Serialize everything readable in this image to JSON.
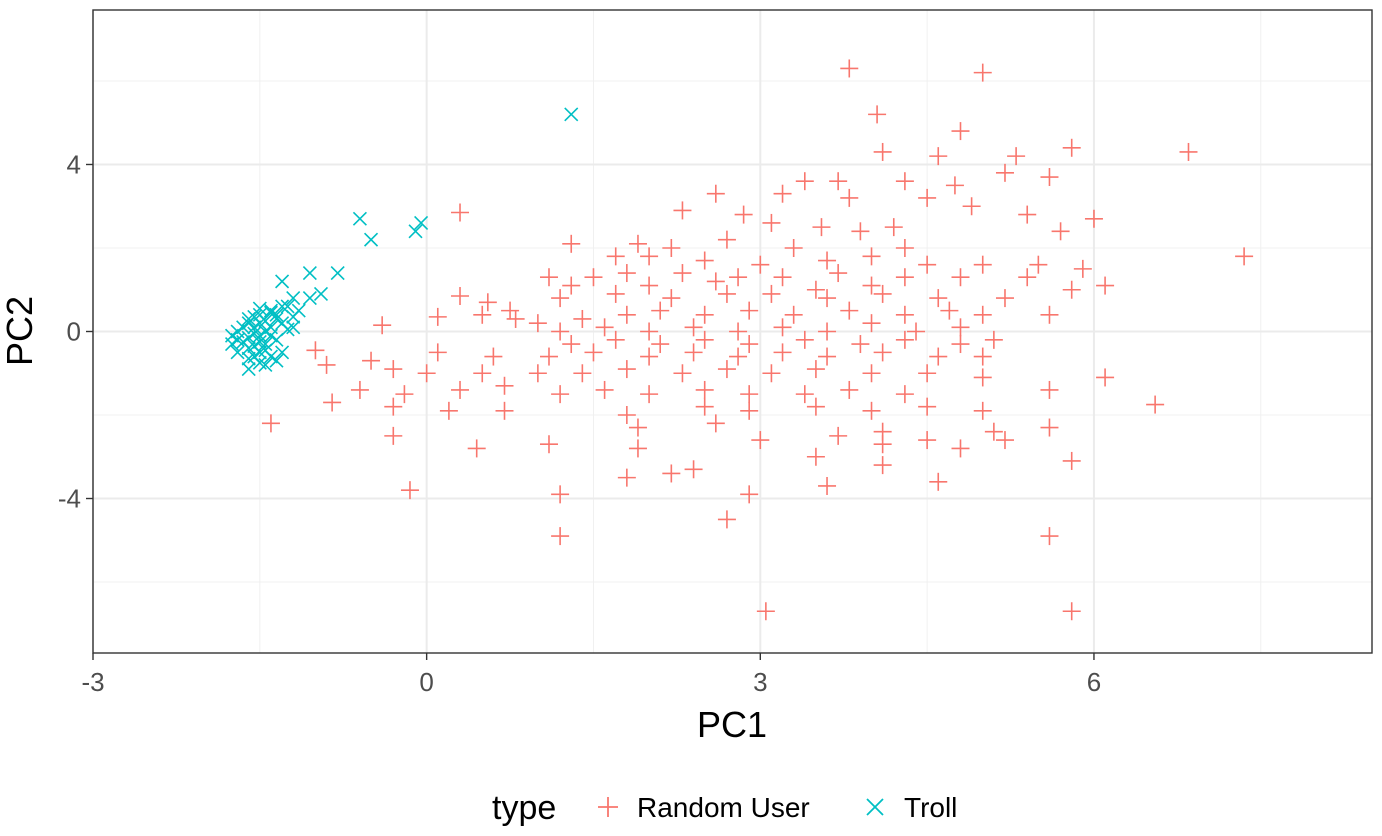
{
  "chart_data": {
    "type": "scatter",
    "xlabel": "PC1",
    "ylabel": "PC2",
    "xlim": [
      -3,
      8.5
    ],
    "ylim": [
      -7.7,
      7.7
    ],
    "x_ticks": [
      -3,
      0,
      3,
      6
    ],
    "x_tick_labels": [
      "-3",
      "0",
      "3",
      "6"
    ],
    "y_ticks": [
      -4,
      0,
      4
    ],
    "y_tick_labels": [
      "-4",
      "0",
      "4"
    ],
    "grid": true,
    "legend": {
      "title": "type",
      "position": "bottom"
    },
    "series": [
      {
        "name": "Random User",
        "color": "#F8766D",
        "marker": "plus",
        "points": [
          [
            3.8,
            6.3
          ],
          [
            5.0,
            6.2
          ],
          [
            4.05,
            5.2
          ],
          [
            4.8,
            4.8
          ],
          [
            4.1,
            4.3
          ],
          [
            4.6,
            4.2
          ],
          [
            5.3,
            4.2
          ],
          [
            5.8,
            4.4
          ],
          [
            6.85,
            4.3
          ],
          [
            5.2,
            3.8
          ],
          [
            5.6,
            3.7
          ],
          [
            3.4,
            3.6
          ],
          [
            3.7,
            3.6
          ],
          [
            4.3,
            3.6
          ],
          [
            4.75,
            3.5
          ],
          [
            2.6,
            3.3
          ],
          [
            3.2,
            3.3
          ],
          [
            3.8,
            3.2
          ],
          [
            4.5,
            3.2
          ],
          [
            4.9,
            3.0
          ],
          [
            2.3,
            2.9
          ],
          [
            2.85,
            2.8
          ],
          [
            0.3,
            2.85
          ],
          [
            5.4,
            2.8
          ],
          [
            6.0,
            2.7
          ],
          [
            3.1,
            2.6
          ],
          [
            3.55,
            2.5
          ],
          [
            3.9,
            2.4
          ],
          [
            4.2,
            2.5
          ],
          [
            5.7,
            2.4
          ],
          [
            1.3,
            2.1
          ],
          [
            1.9,
            2.1
          ],
          [
            2.2,
            2.0
          ],
          [
            2.7,
            2.2
          ],
          [
            3.3,
            2.0
          ],
          [
            4.3,
            2.0
          ],
          [
            7.35,
            1.8
          ],
          [
            1.7,
            1.8
          ],
          [
            2.0,
            1.8
          ],
          [
            2.5,
            1.7
          ],
          [
            3.0,
            1.6
          ],
          [
            3.6,
            1.7
          ],
          [
            4.0,
            1.8
          ],
          [
            4.5,
            1.6
          ],
          [
            5.0,
            1.6
          ],
          [
            5.5,
            1.6
          ],
          [
            5.9,
            1.5
          ],
          [
            1.1,
            1.3
          ],
          [
            1.5,
            1.3
          ],
          [
            1.8,
            1.4
          ],
          [
            2.3,
            1.4
          ],
          [
            2.8,
            1.3
          ],
          [
            3.2,
            1.3
          ],
          [
            3.7,
            1.4
          ],
          [
            4.3,
            1.3
          ],
          [
            4.8,
            1.3
          ],
          [
            5.4,
            1.3
          ],
          [
            6.1,
            1.1
          ],
          [
            1.3,
            1.1
          ],
          [
            2.0,
            1.1
          ],
          [
            2.6,
            1.2
          ],
          [
            3.5,
            1.0
          ],
          [
            4.0,
            1.1
          ],
          [
            0.3,
            0.85
          ],
          [
            0.55,
            0.7
          ],
          [
            0.75,
            0.5
          ],
          [
            1.2,
            0.8
          ],
          [
            1.7,
            0.9
          ],
          [
            2.2,
            0.8
          ],
          [
            2.7,
            0.9
          ],
          [
            3.1,
            0.9
          ],
          [
            3.6,
            0.8
          ],
          [
            4.1,
            0.9
          ],
          [
            4.6,
            0.8
          ],
          [
            5.2,
            0.8
          ],
          [
            5.8,
            1.0
          ],
          [
            0.1,
            0.35
          ],
          [
            0.5,
            0.4
          ],
          [
            0.8,
            0.3
          ],
          [
            1.0,
            0.2
          ],
          [
            1.4,
            0.3
          ],
          [
            1.8,
            0.4
          ],
          [
            2.1,
            0.5
          ],
          [
            2.5,
            0.4
          ],
          [
            2.9,
            0.5
          ],
          [
            3.3,
            0.4
          ],
          [
            3.8,
            0.5
          ],
          [
            4.3,
            0.4
          ],
          [
            4.7,
            0.5
          ],
          [
            5.0,
            0.4
          ],
          [
            5.6,
            0.4
          ],
          [
            -0.4,
            0.15
          ],
          [
            1.2,
            0.0
          ],
          [
            1.6,
            0.1
          ],
          [
            2.0,
            0.0
          ],
          [
            2.4,
            0.1
          ],
          [
            2.8,
            0.0
          ],
          [
            3.2,
            0.1
          ],
          [
            3.6,
            0.0
          ],
          [
            4.0,
            0.2
          ],
          [
            4.4,
            0.0
          ],
          [
            4.8,
            0.1
          ],
          [
            1.3,
            -0.3
          ],
          [
            1.7,
            -0.2
          ],
          [
            2.1,
            -0.3
          ],
          [
            2.5,
            -0.2
          ],
          [
            2.9,
            -0.3
          ],
          [
            3.4,
            -0.2
          ],
          [
            3.9,
            -0.3
          ],
          [
            4.3,
            -0.2
          ],
          [
            4.8,
            -0.3
          ],
          [
            5.1,
            -0.2
          ],
          [
            -1.0,
            -0.45
          ],
          [
            -0.5,
            -0.7
          ],
          [
            0.1,
            -0.5
          ],
          [
            0.6,
            -0.6
          ],
          [
            1.1,
            -0.6
          ],
          [
            1.5,
            -0.5
          ],
          [
            2.0,
            -0.6
          ],
          [
            2.4,
            -0.5
          ],
          [
            2.8,
            -0.6
          ],
          [
            3.2,
            -0.5
          ],
          [
            3.6,
            -0.6
          ],
          [
            4.1,
            -0.5
          ],
          [
            4.6,
            -0.6
          ],
          [
            5.0,
            -0.6
          ],
          [
            -0.9,
            -0.8
          ],
          [
            -0.3,
            -0.9
          ],
          [
            0.0,
            -1.0
          ],
          [
            0.5,
            -1.0
          ],
          [
            1.0,
            -1.0
          ],
          [
            1.4,
            -1.0
          ],
          [
            1.8,
            -0.9
          ],
          [
            2.3,
            -1.0
          ],
          [
            2.7,
            -0.9
          ],
          [
            3.1,
            -1.0
          ],
          [
            3.5,
            -0.9
          ],
          [
            4.0,
            -1.0
          ],
          [
            4.5,
            -1.0
          ],
          [
            5.0,
            -1.1
          ],
          [
            6.1,
            -1.1
          ],
          [
            -0.6,
            -1.4
          ],
          [
            -0.2,
            -1.5
          ],
          [
            0.3,
            -1.4
          ],
          [
            0.7,
            -1.3
          ],
          [
            1.2,
            -1.5
          ],
          [
            1.6,
            -1.4
          ],
          [
            2.0,
            -1.5
          ],
          [
            2.5,
            -1.4
          ],
          [
            2.9,
            -1.5
          ],
          [
            3.4,
            -1.5
          ],
          [
            3.8,
            -1.4
          ],
          [
            4.3,
            -1.5
          ],
          [
            5.6,
            -1.4
          ],
          [
            -0.85,
            -1.7
          ],
          [
            -0.3,
            -1.8
          ],
          [
            0.2,
            -1.9
          ],
          [
            0.7,
            -1.9
          ],
          [
            1.8,
            -2.0
          ],
          [
            2.5,
            -1.8
          ],
          [
            2.9,
            -1.9
          ],
          [
            3.5,
            -1.8
          ],
          [
            4.0,
            -1.9
          ],
          [
            4.5,
            -1.8
          ],
          [
            5.0,
            -1.9
          ],
          [
            6.55,
            -1.75
          ],
          [
            -1.4,
            -2.2
          ],
          [
            1.9,
            -2.3
          ],
          [
            2.6,
            -2.2
          ],
          [
            4.1,
            -2.4
          ],
          [
            4.5,
            -2.6
          ],
          [
            5.1,
            -2.4
          ],
          [
            5.6,
            -2.3
          ],
          [
            -0.3,
            -2.5
          ],
          [
            0.45,
            -2.8
          ],
          [
            1.1,
            -2.7
          ],
          [
            1.9,
            -2.8
          ],
          [
            3.0,
            -2.6
          ],
          [
            3.7,
            -2.5
          ],
          [
            4.1,
            -2.7
          ],
          [
            4.8,
            -2.8
          ],
          [
            5.2,
            -2.6
          ],
          [
            3.5,
            -3.0
          ],
          [
            4.1,
            -3.2
          ],
          [
            5.8,
            -3.1
          ],
          [
            1.8,
            -3.5
          ],
          [
            2.2,
            -3.4
          ],
          [
            2.4,
            -3.3
          ],
          [
            4.6,
            -3.6
          ],
          [
            -0.15,
            -3.8
          ],
          [
            1.2,
            -3.9
          ],
          [
            2.9,
            -3.9
          ],
          [
            3.6,
            -3.7
          ],
          [
            2.7,
            -4.5
          ],
          [
            1.2,
            -4.9
          ],
          [
            5.6,
            -4.9
          ],
          [
            3.05,
            -6.7
          ],
          [
            5.8,
            -6.7
          ]
        ]
      },
      {
        "name": "Troll",
        "color": "#00BFC4",
        "marker": "cross",
        "points": [
          [
            1.3,
            5.2
          ],
          [
            -0.6,
            2.7
          ],
          [
            -0.05,
            2.6
          ],
          [
            -0.5,
            2.2
          ],
          [
            -0.1,
            2.4
          ],
          [
            -0.8,
            1.4
          ],
          [
            -1.05,
            1.4
          ],
          [
            -1.3,
            1.2
          ],
          [
            -0.95,
            0.9
          ],
          [
            -1.05,
            0.8
          ],
          [
            -1.2,
            0.8
          ],
          [
            -1.3,
            0.6
          ],
          [
            -1.4,
            0.5
          ],
          [
            -1.5,
            0.4
          ],
          [
            -1.55,
            0.35
          ],
          [
            -1.6,
            0.2
          ],
          [
            -1.7,
            0.0
          ],
          [
            -1.75,
            -0.1
          ],
          [
            -1.65,
            -0.25
          ],
          [
            -1.6,
            -0.4
          ],
          [
            -1.55,
            -0.6
          ],
          [
            -1.5,
            -0.75
          ],
          [
            -1.6,
            -0.9
          ],
          [
            -1.45,
            -0.8
          ],
          [
            -1.5,
            -0.5
          ],
          [
            -1.45,
            -0.3
          ],
          [
            -1.4,
            -0.1
          ],
          [
            -1.4,
            0.1
          ],
          [
            -1.35,
            0.3
          ],
          [
            -1.3,
            0.2
          ],
          [
            -1.25,
            0.05
          ],
          [
            -1.35,
            -0.2
          ],
          [
            -1.3,
            -0.5
          ],
          [
            -1.45,
            0.0
          ],
          [
            -1.55,
            0.1
          ],
          [
            -1.6,
            -0.15
          ],
          [
            -1.7,
            -0.2
          ],
          [
            -1.65,
            0.1
          ],
          [
            -1.5,
            0.2
          ],
          [
            -1.45,
            0.25
          ],
          [
            -1.5,
            -0.1
          ],
          [
            -1.55,
            -0.35
          ],
          [
            -1.45,
            -0.45
          ],
          [
            -1.4,
            -0.6
          ],
          [
            -1.35,
            -0.7
          ],
          [
            -1.6,
            -0.65
          ],
          [
            -1.7,
            -0.5
          ],
          [
            -1.75,
            -0.3
          ],
          [
            -1.5,
            0.55
          ],
          [
            -1.4,
            0.45
          ],
          [
            -1.6,
            0.3
          ],
          [
            -1.5,
            -0.25
          ],
          [
            -1.55,
            -0.05
          ],
          [
            -1.35,
            0.4
          ],
          [
            -1.2,
            0.35
          ],
          [
            -1.2,
            0.1
          ],
          [
            -1.15,
            0.5
          ],
          [
            -1.25,
            0.6
          ]
        ]
      }
    ]
  }
}
